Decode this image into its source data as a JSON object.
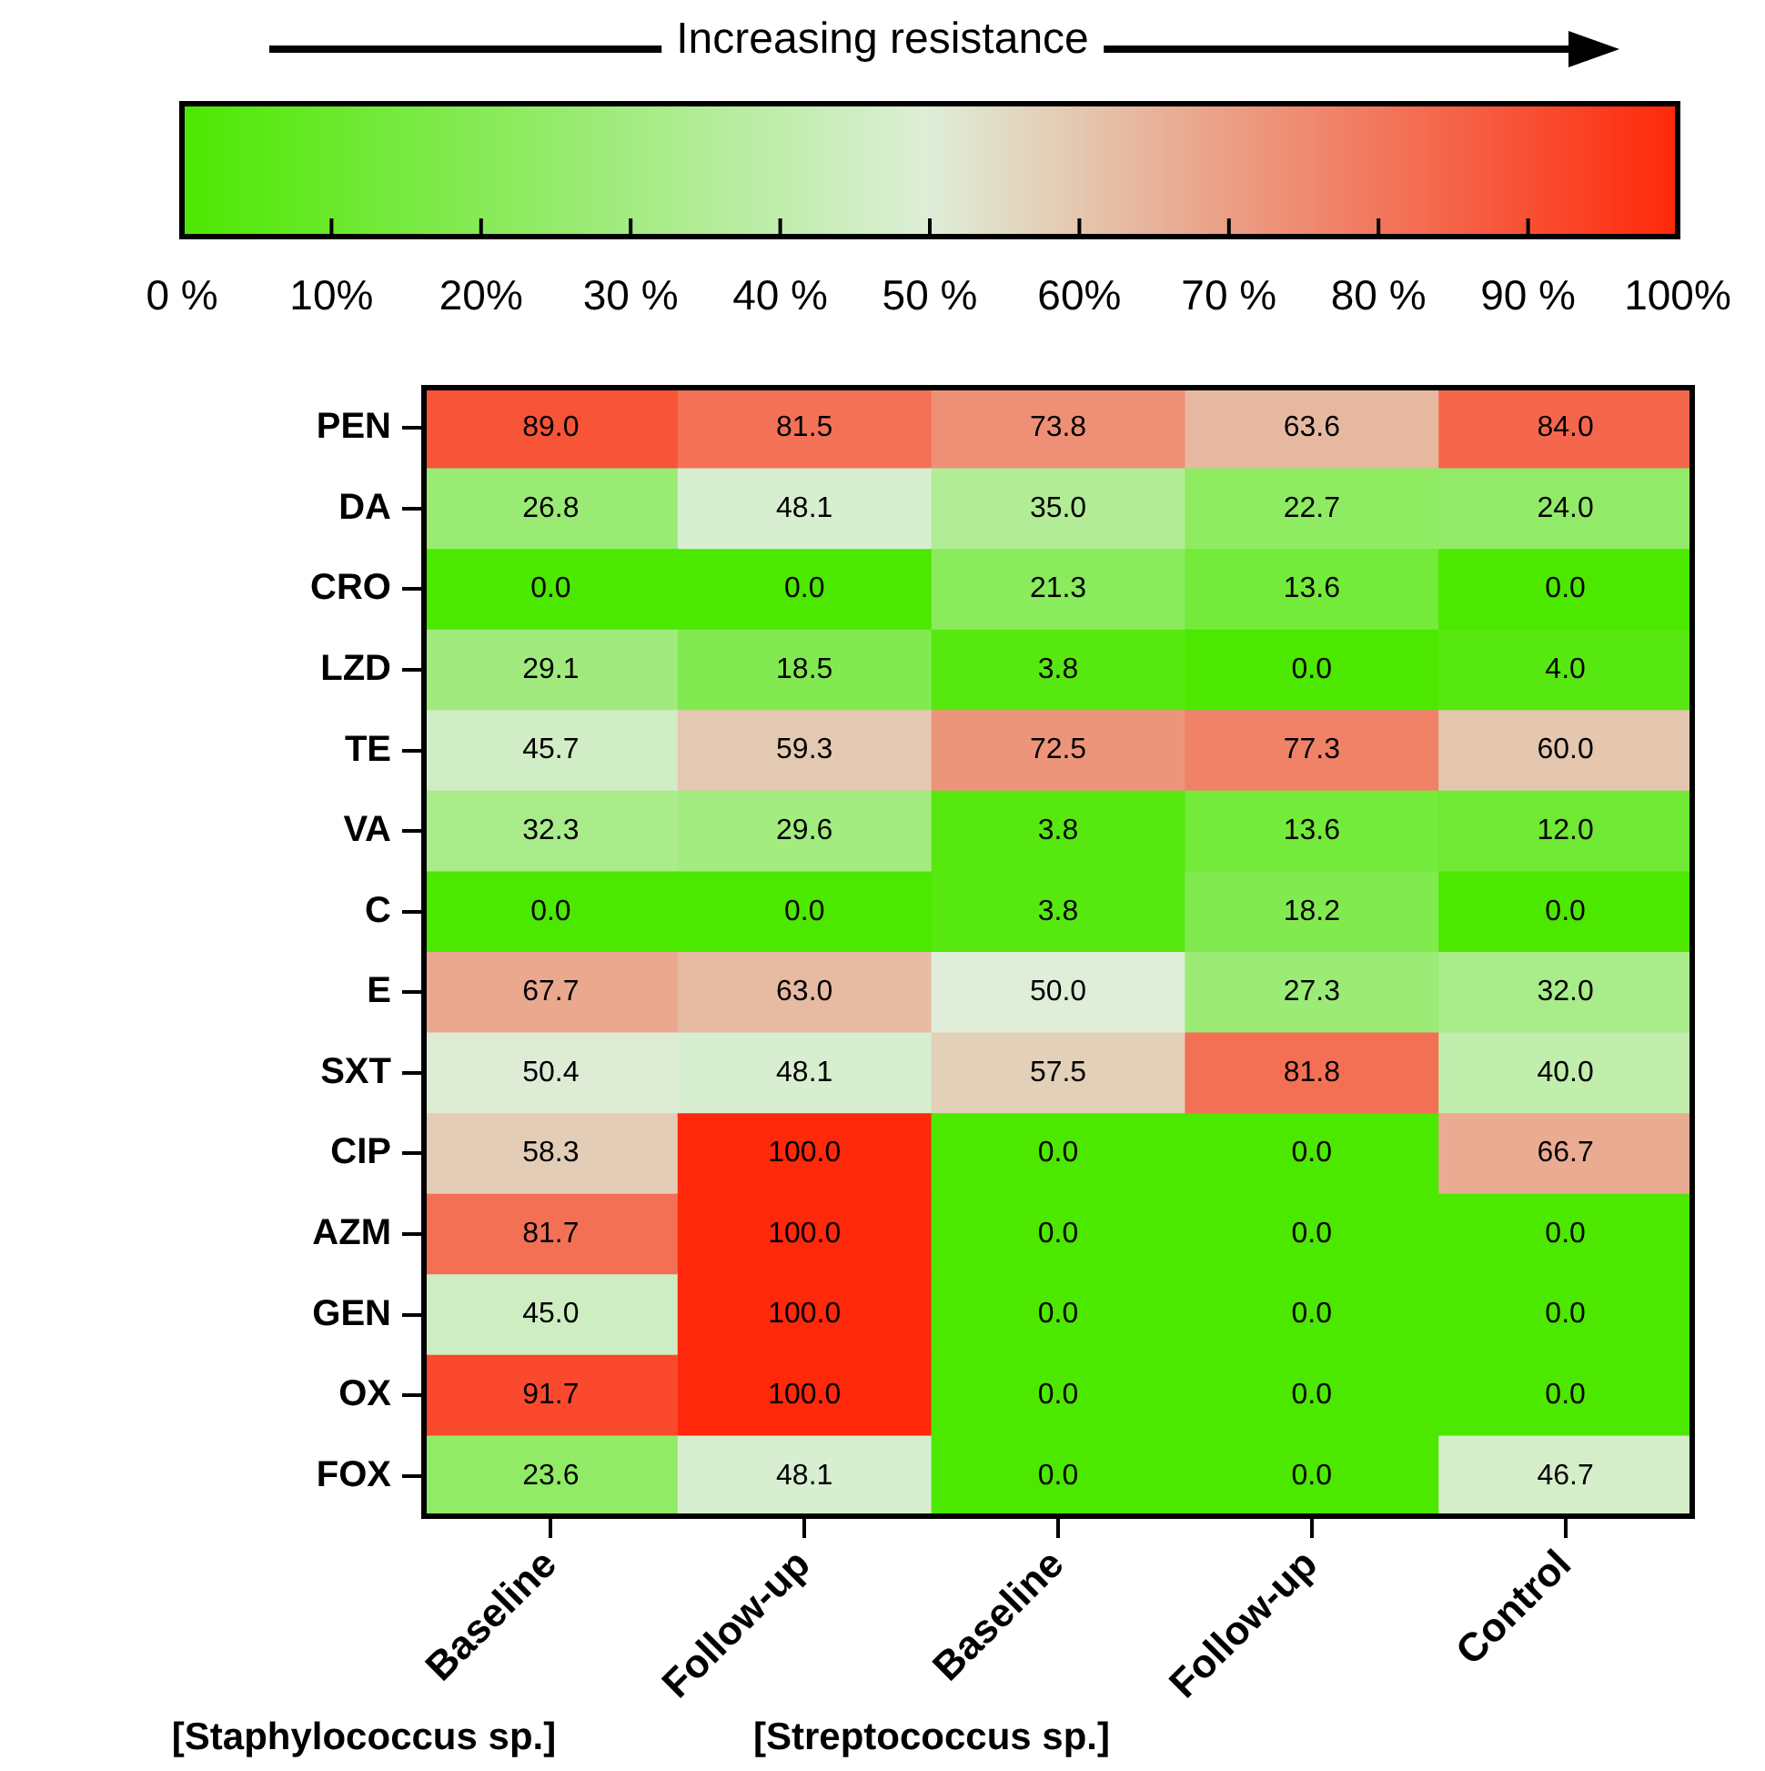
{
  "chart_data": {
    "type": "heatmap",
    "categories": [
      "Baseline",
      "Follow-up",
      "Baseline",
      "Follow-up",
      "Control"
    ],
    "y_categories": [
      "PEN",
      "DA",
      "CRO",
      "LZD",
      "TE",
      "VA",
      "C",
      "E",
      "SXT",
      "CIP",
      "AZM",
      "GEN",
      "OX",
      "FOX"
    ],
    "cells": [
      [
        89.0,
        81.5,
        73.8,
        63.6,
        84.0
      ],
      [
        26.8,
        48.1,
        35.0,
        22.7,
        24.0
      ],
      [
        0.0,
        0.0,
        21.3,
        13.6,
        0.0
      ],
      [
        29.1,
        18.5,
        3.8,
        0.0,
        4.0
      ],
      [
        45.7,
        59.3,
        72.5,
        77.3,
        60.0
      ],
      [
        32.3,
        29.6,
        3.8,
        13.6,
        12.0
      ],
      [
        0.0,
        0.0,
        3.8,
        18.2,
        0.0
      ],
      [
        67.7,
        63.0,
        50.0,
        27.3,
        32.0
      ],
      [
        50.4,
        48.1,
        57.5,
        81.8,
        40.0
      ],
      [
        58.3,
        100.0,
        0.0,
        0.0,
        66.7
      ],
      [
        81.7,
        100.0,
        0.0,
        0.0,
        0.0
      ],
      [
        45.0,
        100.0,
        0.0,
        0.0,
        0.0
      ],
      [
        91.7,
        100.0,
        0.0,
        0.0,
        0.0
      ],
      [
        23.6,
        48.1,
        0.0,
        0.0,
        46.7
      ]
    ],
    "cell_labels": [
      [
        "89.0",
        "81.5",
        "73.8",
        "63.6",
        "84.0"
      ],
      [
        "26.8",
        "48.1",
        "35.0",
        "22.7",
        "24.0"
      ],
      [
        "0.0",
        "0.0",
        "21.3",
        "13.6",
        "0.0"
      ],
      [
        "29.1",
        "18.5",
        "3.8",
        "0.0",
        "4.0"
      ],
      [
        "45.7",
        "59.3",
        "72.5",
        "77.3",
        "60.0"
      ],
      [
        "32.3",
        "29.6",
        "3.8",
        "13.6",
        "12.0"
      ],
      [
        "0.0",
        "0.0",
        "3.8",
        "18.2",
        "0.0"
      ],
      [
        "67.7",
        "63.0",
        "50.0",
        "27.3",
        "32.0"
      ],
      [
        "50.4",
        "48.1",
        "57.5",
        "81.8",
        "40.0"
      ],
      [
        "58.3",
        "100.0",
        "0.0",
        "0.0",
        "66.7"
      ],
      [
        "81.7",
        "100.0",
        "0.0",
        "0.0",
        "0.0"
      ],
      [
        "45.0",
        "100.0",
        "0.0",
        "0.0",
        "0.0"
      ],
      [
        "91.7",
        "100.0",
        "0.0",
        "0.0",
        "0.0"
      ],
      [
        "23.6",
        "48.1",
        "0.0",
        "0.0",
        "46.7"
      ]
    ],
    "clim": [
      0,
      100
    ],
    "cticks": [
      {
        "value": 0,
        "label": "0 %"
      },
      {
        "value": 10,
        "label": "10%"
      },
      {
        "value": 20,
        "label": "20%"
      },
      {
        "value": 30,
        "label": "30 %"
      },
      {
        "value": 40,
        "label": "40 %"
      },
      {
        "value": 50,
        "label": "50 %"
      },
      {
        "value": 60,
        "label": "60%"
      },
      {
        "value": 70,
        "label": "70 %"
      },
      {
        "value": 80,
        "label": "80 %"
      },
      {
        "value": 90,
        "label": "90 %"
      },
      {
        "value": 100,
        "label": "100%"
      }
    ],
    "annotations": [
      "Increasing resistance",
      "[Staphylococcus sp.]",
      "[Streptococcus sp.]"
    ]
  }
}
